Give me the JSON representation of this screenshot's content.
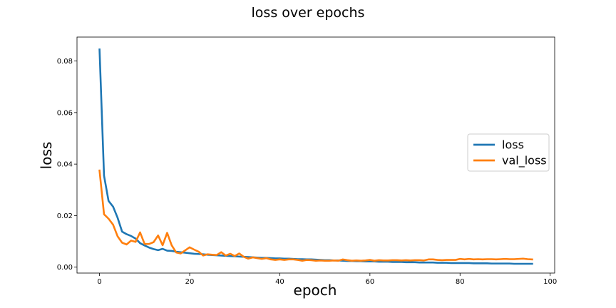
{
  "chart_data": {
    "type": "line",
    "title": "loss over epochs",
    "xlabel": "epoch",
    "ylabel": "loss",
    "xlim": [
      -5,
      101
    ],
    "ylim": [
      -0.0023,
      0.0893
    ],
    "xticks": [
      0,
      20,
      40,
      60,
      80,
      100
    ],
    "yticks": [
      0.0,
      0.02,
      0.04,
      0.06,
      0.08
    ],
    "ytick_labels": [
      "0.00",
      "0.02",
      "0.04",
      "0.06",
      "0.08"
    ],
    "grid": false,
    "legend_position": "center-right",
    "x": [
      0,
      1,
      2,
      3,
      4,
      5,
      6,
      7,
      8,
      9,
      10,
      11,
      12,
      13,
      14,
      15,
      16,
      17,
      18,
      19,
      20,
      21,
      22,
      23,
      24,
      25,
      26,
      27,
      28,
      29,
      30,
      31,
      32,
      33,
      34,
      35,
      36,
      37,
      38,
      39,
      40,
      41,
      42,
      43,
      44,
      45,
      46,
      47,
      48,
      49,
      50,
      51,
      52,
      53,
      54,
      55,
      56,
      57,
      58,
      59,
      60,
      61,
      62,
      63,
      64,
      65,
      66,
      67,
      68,
      69,
      70,
      71,
      72,
      73,
      74,
      75,
      76,
      77,
      78,
      79,
      80,
      81,
      82,
      83,
      84,
      85,
      86,
      87,
      88,
      89,
      90,
      91,
      92,
      93,
      94,
      95,
      96
    ],
    "series": [
      {
        "name": "loss",
        "color": "#1f77b4",
        "values": [
          0.0845,
          0.0355,
          0.0257,
          0.0235,
          0.0192,
          0.0138,
          0.0128,
          0.0121,
          0.0111,
          0.0093,
          0.0084,
          0.0076,
          0.007,
          0.0066,
          0.0071,
          0.0064,
          0.0063,
          0.006,
          0.0058,
          0.0056,
          0.0054,
          0.0052,
          0.0051,
          0.005,
          0.0048,
          0.0047,
          0.0046,
          0.0045,
          0.0044,
          0.0043,
          0.0042,
          0.0041,
          0.004,
          0.0039,
          0.0038,
          0.0037,
          0.0036,
          0.0036,
          0.0035,
          0.0034,
          0.0034,
          0.0033,
          0.0033,
          0.0032,
          0.0031,
          0.0031,
          0.003,
          0.003,
          0.0029,
          0.0028,
          0.0027,
          0.0027,
          0.0026,
          0.0026,
          0.0025,
          0.0024,
          0.0024,
          0.0023,
          0.0023,
          0.0022,
          0.0022,
          0.0022,
          0.0021,
          0.0021,
          0.0021,
          0.002,
          0.002,
          0.002,
          0.0019,
          0.0019,
          0.0019,
          0.0018,
          0.0018,
          0.0018,
          0.0018,
          0.0017,
          0.0017,
          0.0017,
          0.0016,
          0.0016,
          0.0016,
          0.0016,
          0.0016,
          0.0015,
          0.0015,
          0.0015,
          0.0015,
          0.0014,
          0.0014,
          0.0014,
          0.0014,
          0.0014,
          0.0013,
          0.0013,
          0.0013,
          0.0013,
          0.0013
        ]
      },
      {
        "name": "val_loss",
        "color": "#ff7f0e",
        "values": [
          0.0375,
          0.0205,
          0.0188,
          0.0165,
          0.012,
          0.0095,
          0.0088,
          0.0103,
          0.0098,
          0.0135,
          0.009,
          0.009,
          0.0097,
          0.0123,
          0.0085,
          0.0133,
          0.0085,
          0.0057,
          0.0053,
          0.0065,
          0.0077,
          0.0068,
          0.006,
          0.0045,
          0.005,
          0.0048,
          0.0047,
          0.0058,
          0.0045,
          0.0052,
          0.0043,
          0.0053,
          0.004,
          0.0033,
          0.0038,
          0.0035,
          0.0032,
          0.0035,
          0.003,
          0.0028,
          0.003,
          0.0028,
          0.003,
          0.003,
          0.0028,
          0.0025,
          0.0028,
          0.0027,
          0.0025,
          0.0026,
          0.0025,
          0.0025,
          0.0026,
          0.0025,
          0.003,
          0.0027,
          0.0025,
          0.0026,
          0.0025,
          0.0026,
          0.0028,
          0.0025,
          0.0027,
          0.0026,
          0.0026,
          0.0027,
          0.0027,
          0.0026,
          0.0027,
          0.0026,
          0.0027,
          0.0027,
          0.0026,
          0.003,
          0.003,
          0.0028,
          0.0027,
          0.0028,
          0.0028,
          0.0028,
          0.0032,
          0.003,
          0.0032,
          0.003,
          0.0031,
          0.003,
          0.0031,
          0.0031,
          0.003,
          0.0031,
          0.0032,
          0.0031,
          0.0031,
          0.0032,
          0.0033,
          0.0031,
          0.003
        ]
      }
    ]
  }
}
